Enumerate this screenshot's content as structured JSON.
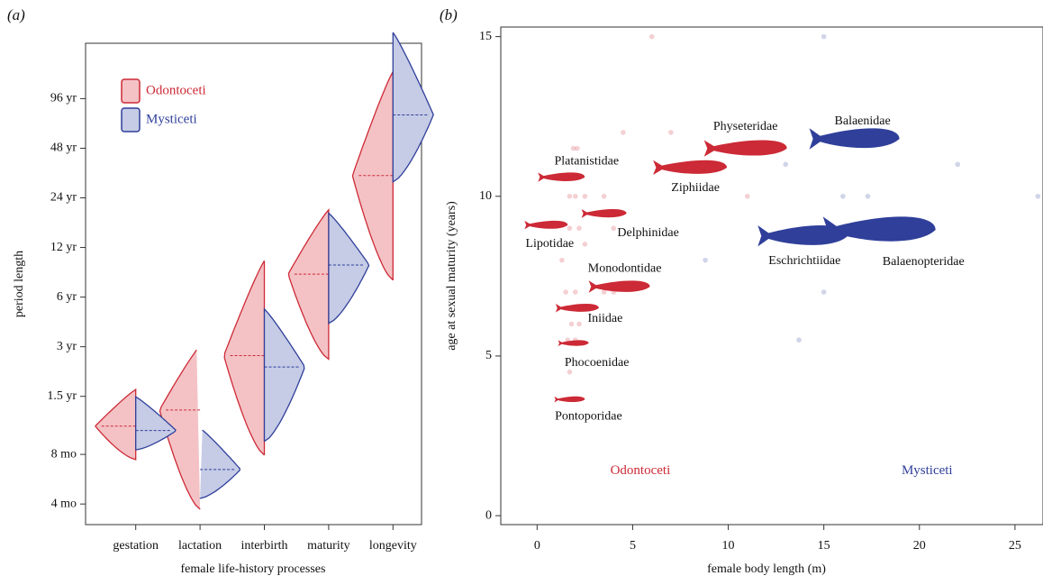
{
  "chart_data": [
    {
      "type": "violin",
      "panel": "(a)",
      "x_label": "female life-history processes",
      "y_label": "period length",
      "log_scale": true,
      "categories": [
        "gestation",
        "lactation",
        "interbirth",
        "maturity",
        "longevity"
      ],
      "ylim": [
        0.25,
        208
      ],
      "yticks": [
        {
          "value": 0.3333,
          "label": "4 mo"
        },
        {
          "value": 0.6667,
          "label": "8 mo"
        },
        {
          "value": 1.5,
          "label": "1.5 yr"
        },
        {
          "value": 3,
          "label": "3 yr"
        },
        {
          "value": 6,
          "label": "6 yr"
        },
        {
          "value": 12,
          "label": "12 yr"
        },
        {
          "value": 24,
          "label": "24 yr"
        },
        {
          "value": 48,
          "label": "48 yr"
        },
        {
          "value": 96,
          "label": "96 yr"
        }
      ],
      "series": [
        {
          "name": "Odontoceti",
          "color": "#cc2a36",
          "fill": "#f4c2c5",
          "values": [
            0.99,
            1.24,
            2.65,
            8.27,
            32.8
          ],
          "min": [
            0.62,
            0.31,
            0.66,
            2.52,
            7.6
          ],
          "max": [
            1.65,
            3.04,
            9.97,
            20.3,
            140
          ]
        },
        {
          "name": "Mysticeti",
          "color": "#2f3f9a",
          "fill": "#c6cbe6",
          "values": [
            0.93,
            0.54,
            2.26,
            9.4,
            76.5
          ],
          "min": [
            0.71,
            0.36,
            0.8,
            4.16,
            30
          ],
          "max": [
            1.49,
            0.96,
            5.08,
            19.4,
            242
          ]
        }
      ]
    },
    {
      "type": "scatter",
      "panel": "(b)",
      "x_label": "female body length (m)",
      "y_label": "age at sexual maturity (years)",
      "xlim": [
        -1.9,
        25.9
      ],
      "ylim": [
        -0.28,
        15.3
      ],
      "xticks": [
        0,
        5,
        10,
        15,
        20,
        25
      ],
      "yticks": [
        0,
        5,
        10,
        15
      ],
      "series": [
        {
          "name": "Odontoceti",
          "color": "#cc2a36",
          "x": [
            1.9,
            2.1,
            4.5,
            7,
            6,
            1.7,
            2,
            2.5,
            3.5,
            1.7,
            2.2,
            4,
            1.3,
            1.5,
            2,
            3.5,
            4,
            1.5,
            2,
            1.8,
            2.2,
            1.6,
            2,
            1.7,
            11,
            2.5
          ],
          "values": [
            11.5,
            11.5,
            12,
            12,
            15,
            10,
            10,
            10,
            10,
            9,
            9,
            9,
            8,
            7,
            7,
            7,
            7,
            6.5,
            6.5,
            6,
            6,
            5.5,
            5.5,
            4.5,
            10,
            8.5
          ]
        },
        {
          "name": "Mysticeti",
          "color": "#2f3f9a",
          "x": [
            15,
            13,
            22,
            16,
            17.3,
            26.2,
            8.8,
            15,
            13.7,
            14.5
          ],
          "values": [
            15,
            11,
            11,
            10,
            10,
            10,
            8,
            7,
            5.5,
            9
          ]
        }
      ],
      "families": [
        {
          "name": "Platanistidae",
          "group": 0,
          "x": 1.27,
          "y": 10.6
        },
        {
          "name": "Lipotidae",
          "group": 0,
          "x": 0.47,
          "y": 9.1
        },
        {
          "name": "Delphinidae",
          "group": 0,
          "x": 3.5,
          "y": 9.46
        },
        {
          "name": "Physeteridae",
          "group": 0,
          "x": 10.9,
          "y": 11.5
        },
        {
          "name": "Ziphiidae",
          "group": 0,
          "x": 8.0,
          "y": 10.9
        },
        {
          "name": "Balaenidae",
          "group": 1,
          "x": 16.6,
          "y": 11.8
        },
        {
          "name": "Eschrichtiidae",
          "group": 1,
          "x": 13.9,
          "y": 8.76
        },
        {
          "name": "Balaenopteridae",
          "group": 1,
          "x": 17.9,
          "y": 8.95
        },
        {
          "name": "Monodontidae",
          "group": 0,
          "x": 4.3,
          "y": 7.17
        },
        {
          "name": "Iniidae",
          "group": 0,
          "x": 2.1,
          "y": 6.5
        },
        {
          "name": "Phocoenidae",
          "group": 0,
          "x": 1.9,
          "y": 5.4
        },
        {
          "name": "Pontoporidae",
          "group": 0,
          "x": 1.7,
          "y": 3.64
        }
      ],
      "annotations": [
        {
          "text": "Odontoceti",
          "group": 0,
          "x": 5.4,
          "y": 1.4
        },
        {
          "text": "Mysticeti",
          "group": 1,
          "x": 20.4,
          "y": 1.4
        }
      ]
    }
  ]
}
